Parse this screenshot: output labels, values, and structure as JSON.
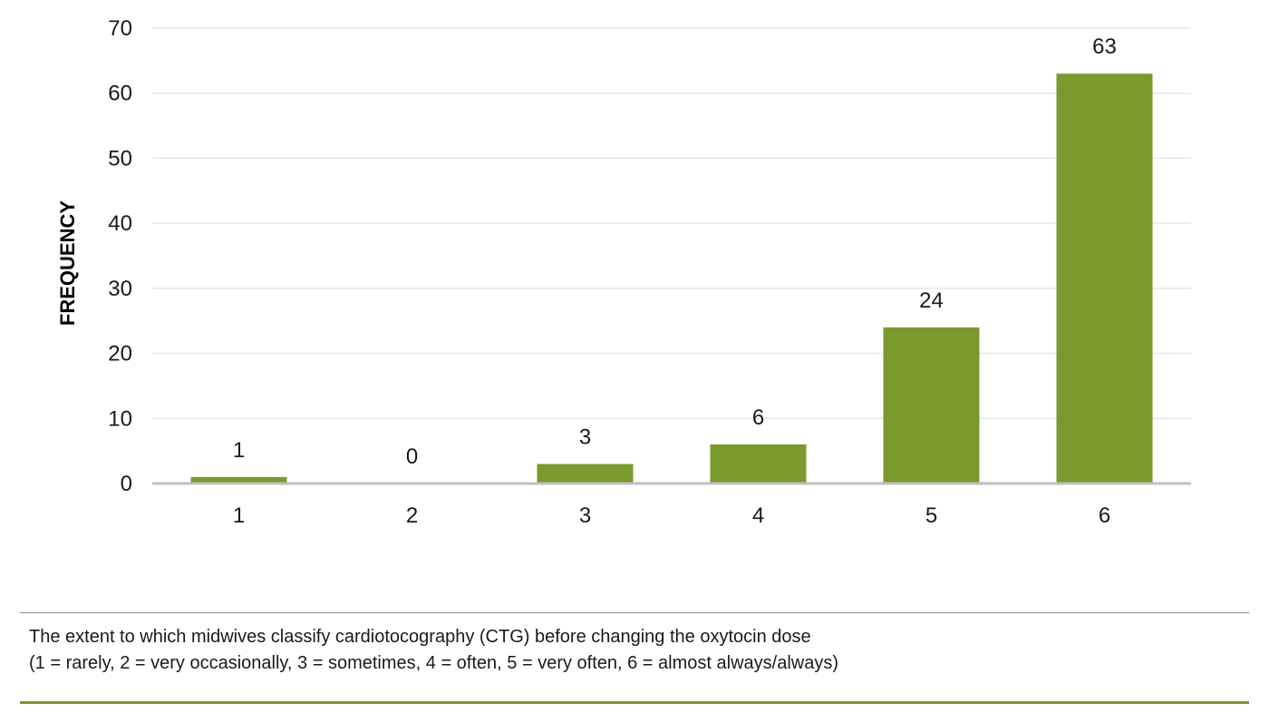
{
  "chart_data": {
    "type": "bar",
    "categories": [
      "1",
      "2",
      "3",
      "4",
      "5",
      "6"
    ],
    "values": [
      1,
      0,
      3,
      6,
      24,
      63
    ],
    "data_labels": [
      "1",
      "0",
      "3",
      "6",
      "24",
      "63"
    ],
    "ylabel": "FREQUENCY",
    "xlabel": "",
    "ylim": [
      0,
      70
    ],
    "y_ticks": [
      "0",
      "10",
      "20",
      "30",
      "40",
      "50",
      "60",
      "70"
    ],
    "grid": true,
    "legend": "none",
    "bar_color": "#7a9a2e",
    "grid_color": "#e6e6e6",
    "axis_color": "#bfbfbf"
  },
  "caption": {
    "line1": "The extent to which midwives classify cardiotocography (CTG) before changing the oxytocin dose",
    "line2": "(1 = rarely, 2 = very occasionally, 3 = sometimes, 4 = often, 5 = very often, 6 = almost always/always)"
  },
  "colors": {
    "caption_rule_top": "#8c8c8c",
    "caption_rule_bottom": "#7a9a2e"
  }
}
